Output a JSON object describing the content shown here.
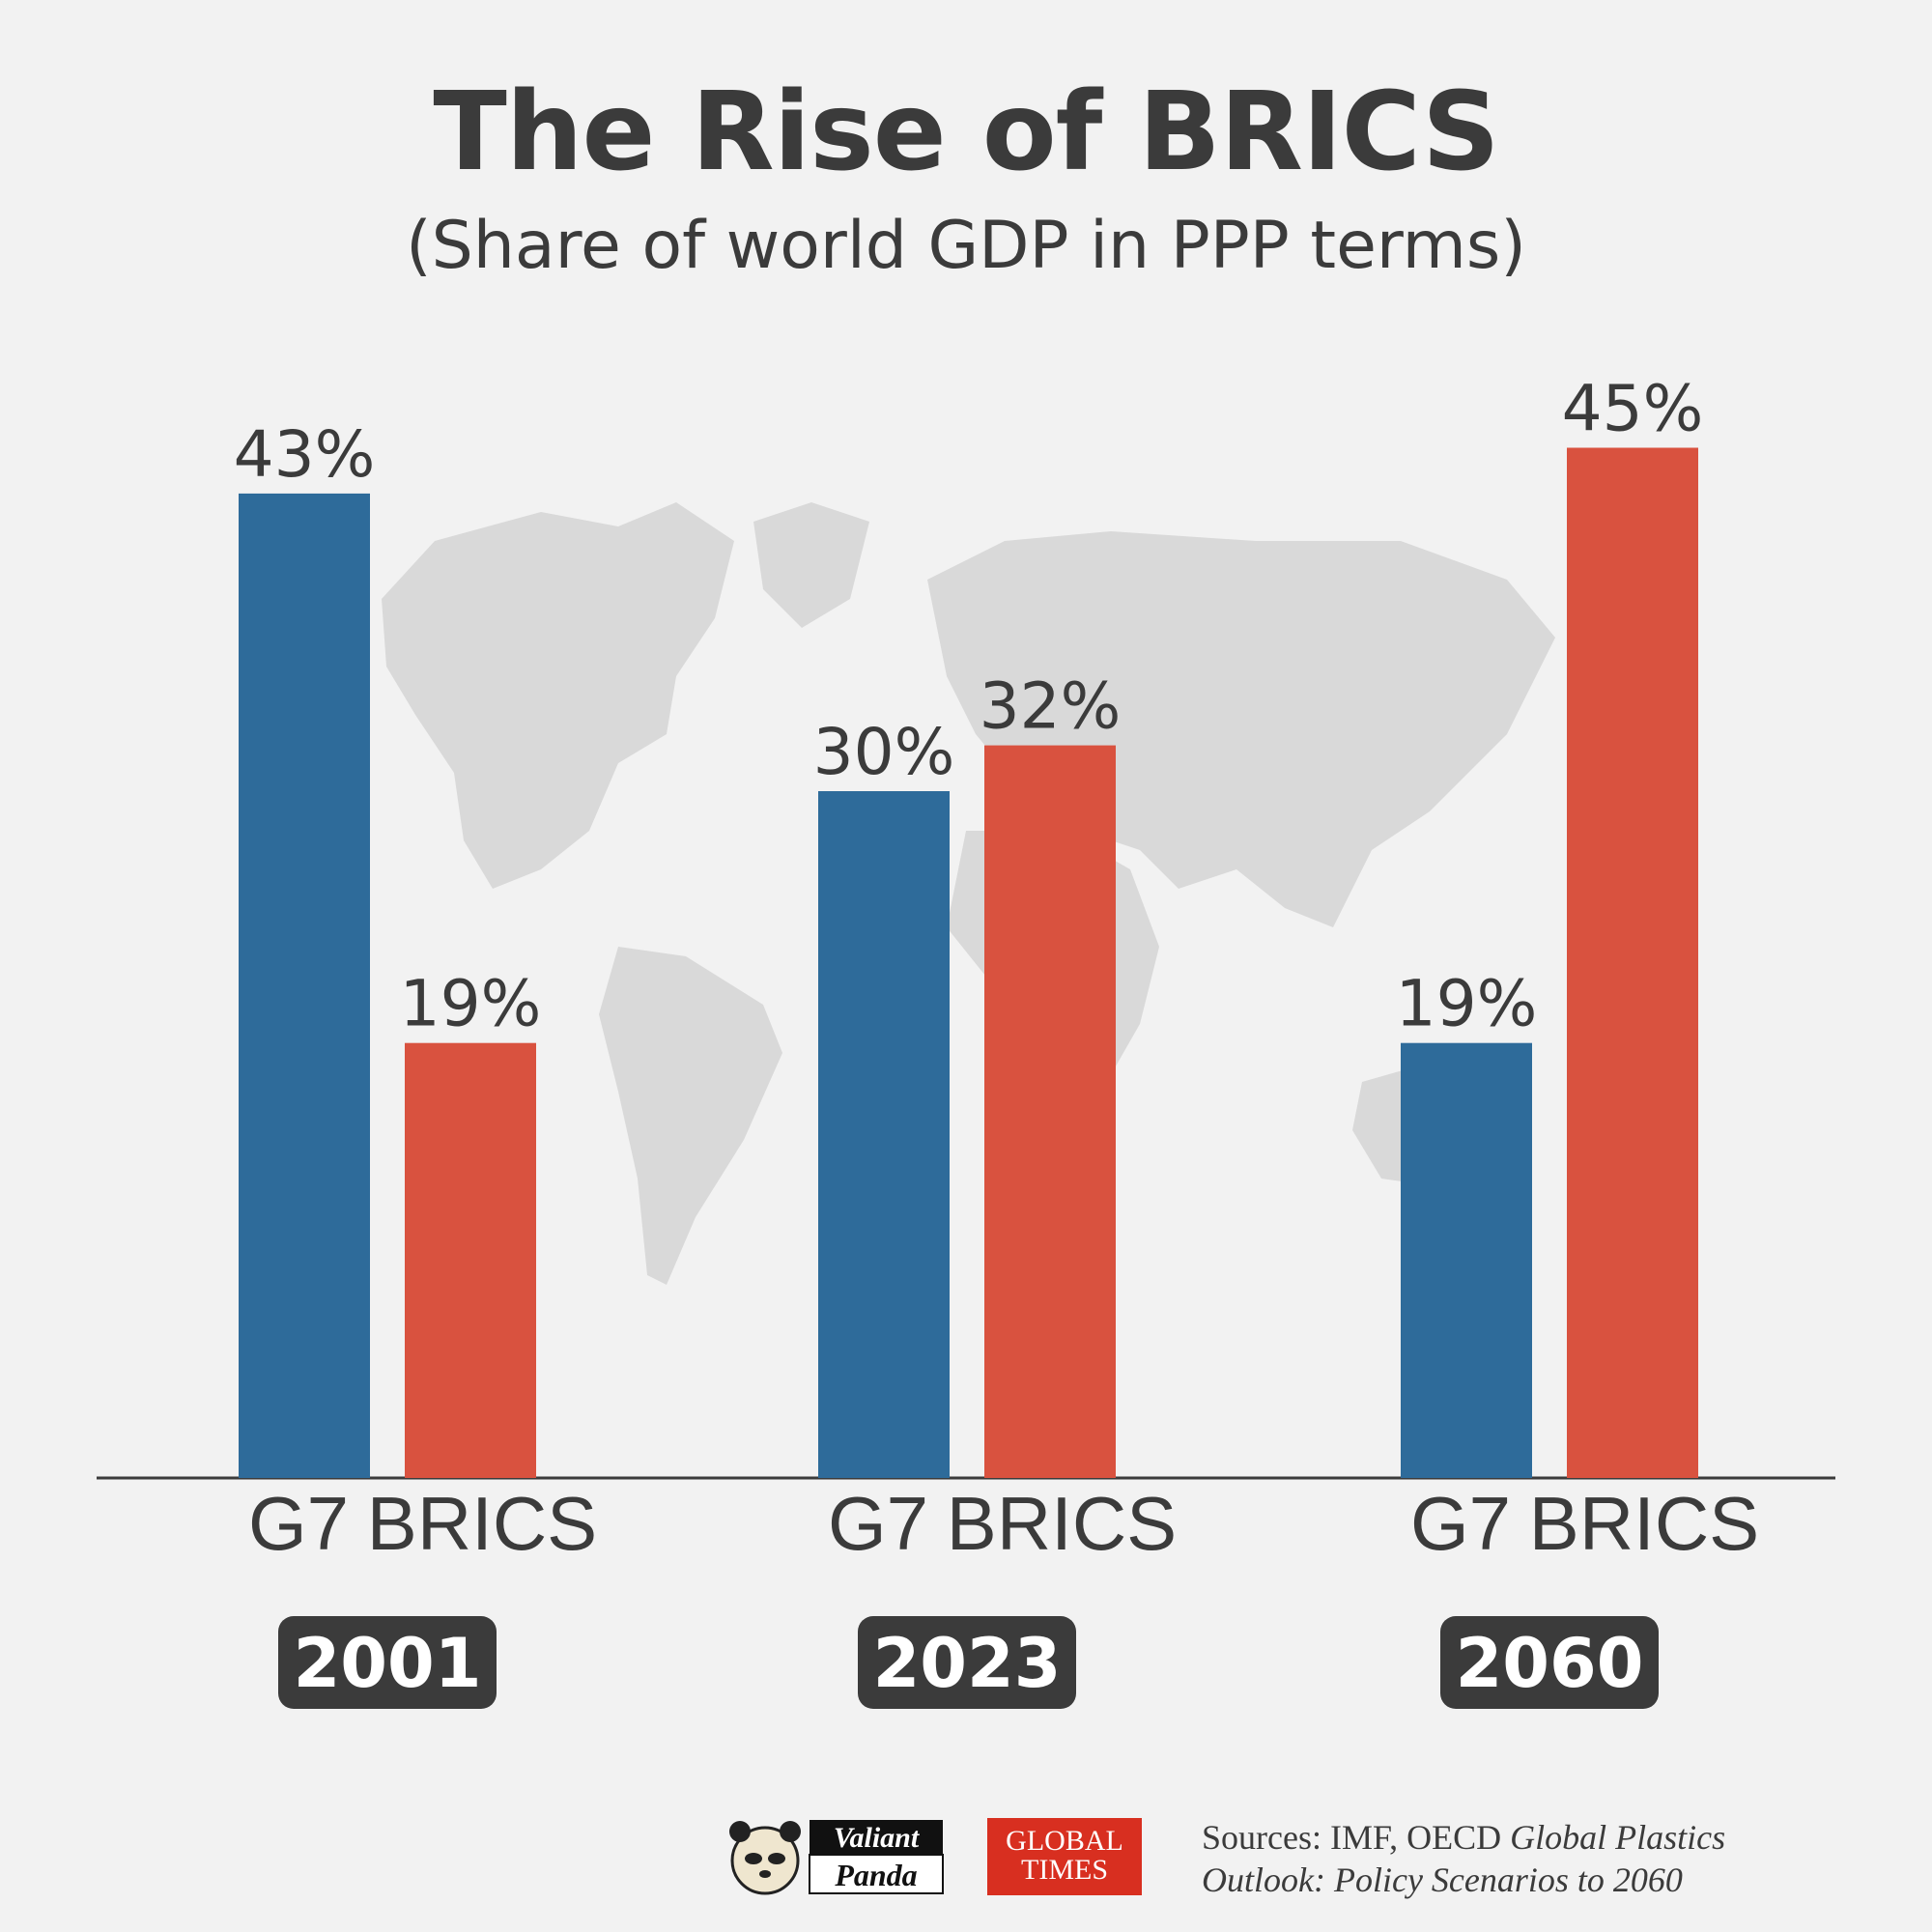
{
  "title": "The Rise of BRICS",
  "subtitle": "(Share of world GDP in PPP terms)",
  "colors": {
    "g7": "#2e6b9a",
    "brics": "#d9523f",
    "text": "#3b3b3b",
    "background": "#f2f2f2",
    "map": "#d9d9d9"
  },
  "chart_data": {
    "type": "bar",
    "title": "The Rise of BRICS",
    "subtitle": "(Share of world GDP in PPP terms)",
    "categories": [
      "2001",
      "2023",
      "2060"
    ],
    "series": [
      {
        "name": "G7",
        "values": [
          43,
          30,
          19
        ],
        "labels": [
          "43%",
          "30%",
          "19%"
        ]
      },
      {
        "name": "BRICS",
        "values": [
          19,
          32,
          45
        ],
        "labels": [
          "19%",
          "32%",
          "45%"
        ]
      }
    ],
    "unit": "%",
    "ylim": [
      0,
      50
    ],
    "xlabel": "",
    "ylabel": "",
    "grid": false,
    "legend": "none"
  },
  "footer": {
    "logo1_line1": "Valiant",
    "logo1_line2": "Panda",
    "logo2_line1": "GLOBAL",
    "logo2_line2": "TIMES",
    "sources_prefix": "Sources: IMF, OECD ",
    "sources_italic_1": "Global Plastics",
    "sources_italic_2": "Outlook: Policy Scenarios to 2060"
  }
}
